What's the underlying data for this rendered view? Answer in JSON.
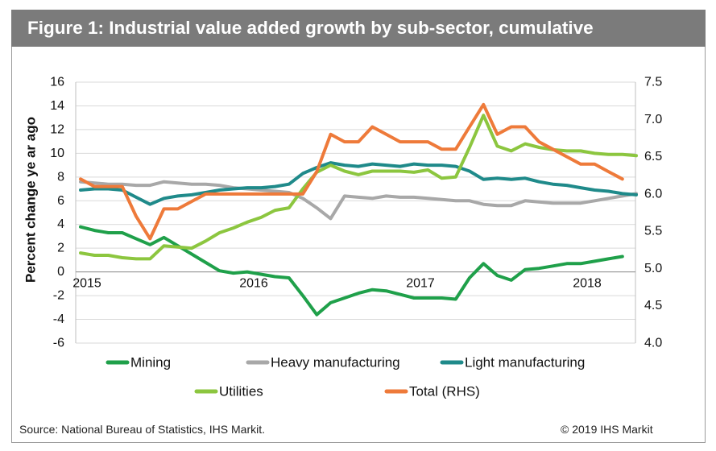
{
  "title": "Figure 1: Industrial value added growth by sub-sector, cumulative",
  "source": "Source: National Bureau of Statistics, IHS Markit.",
  "copyright": "© 2019 IHS Markit",
  "chart_data": {
    "type": "line",
    "ylabel": "Percent change ye ar ago",
    "ylim": [
      -6,
      16
    ],
    "y_ticks": [
      "16",
      "14",
      "12",
      "10",
      "8",
      "6",
      "4",
      "2",
      "0",
      "-2",
      "-4",
      "-6"
    ],
    "y2lim": [
      4.0,
      7.5
    ],
    "y2_ticks": [
      "7.5",
      "7.0",
      "6.5",
      "6.0",
      "5.5",
      "5.0",
      "4.5",
      "4.0"
    ],
    "x_tick_labels": [
      "2015",
      "2016",
      "2017",
      "2018"
    ],
    "x": [
      "2015-01",
      "2015-02",
      "2015-03",
      "2015-04",
      "2015-05",
      "2015-06",
      "2015-07",
      "2015-08",
      "2015-09",
      "2015-10",
      "2015-11",
      "2015-12",
      "2016-01",
      "2016-02",
      "2016-03",
      "2016-04",
      "2016-05",
      "2016-06",
      "2016-07",
      "2016-08",
      "2016-09",
      "2016-10",
      "2016-11",
      "2016-12",
      "2017-01",
      "2017-02",
      "2017-03",
      "2017-04",
      "2017-05",
      "2017-06",
      "2017-07",
      "2017-08",
      "2017-09",
      "2017-10",
      "2017-11",
      "2017-12",
      "2018-01",
      "2018-02",
      "2018-03",
      "2018-04",
      "2018-05"
    ],
    "legend_position": "bottom",
    "series": [
      {
        "name": "Mining",
        "color": "#1fa04a",
        "axis": "left",
        "values": [
          3.8,
          3.5,
          3.3,
          3.3,
          2.8,
          2.3,
          2.9,
          2.2,
          1.5,
          0.8,
          0.1,
          -0.1,
          0.0,
          -0.2,
          -0.4,
          -0.5,
          -2.0,
          -3.6,
          -2.6,
          -2.2,
          -1.8,
          -1.5,
          -1.6,
          -1.9,
          -2.2,
          -2.2,
          -2.2,
          -2.3,
          -0.5,
          0.7,
          -0.3,
          -0.7,
          0.2,
          0.3,
          0.5,
          0.7,
          0.7,
          0.9,
          1.1,
          1.3,
          null
        ]
      },
      {
        "name": "Heavy manufacturing",
        "color": "#a8a8a8",
        "axis": "left",
        "values": [
          7.6,
          7.5,
          7.4,
          7.4,
          7.3,
          7.3,
          7.6,
          7.5,
          7.4,
          7.4,
          7.3,
          7.1,
          7.0,
          6.9,
          6.8,
          6.7,
          6.2,
          5.4,
          4.5,
          6.4,
          6.3,
          6.2,
          6.4,
          6.3,
          6.3,
          6.2,
          6.1,
          6.0,
          6.0,
          5.7,
          5.6,
          5.6,
          6.0,
          5.9,
          5.8,
          5.8,
          5.8,
          6.0,
          6.2,
          6.4,
          6.6
        ]
      },
      {
        "name": "Light manufacturing",
        "color": "#1f8a8a",
        "axis": "left",
        "values": [
          6.9,
          7.0,
          7.0,
          6.9,
          6.3,
          5.7,
          6.2,
          6.4,
          6.5,
          6.7,
          6.9,
          7.0,
          7.1,
          7.1,
          7.2,
          7.4,
          8.3,
          8.8,
          9.2,
          9.0,
          8.9,
          9.1,
          9.0,
          8.9,
          9.1,
          9.0,
          9.0,
          8.9,
          8.5,
          7.8,
          7.9,
          7.8,
          7.9,
          7.6,
          7.4,
          7.3,
          7.1,
          6.9,
          6.8,
          6.6,
          6.5
        ]
      },
      {
        "name": "Utilities",
        "color": "#8cc63f",
        "axis": "left",
        "values": [
          1.6,
          1.4,
          1.4,
          1.2,
          1.1,
          1.1,
          2.2,
          2.1,
          2.0,
          2.6,
          3.3,
          3.7,
          4.2,
          4.6,
          5.2,
          5.4,
          7.0,
          8.4,
          9.0,
          8.5,
          8.2,
          8.5,
          8.5,
          8.5,
          8.4,
          8.6,
          7.9,
          8.0,
          10.5,
          13.2,
          10.6,
          10.2,
          10.8,
          10.5,
          10.3,
          10.2,
          10.2,
          10.0,
          9.9,
          9.9,
          9.8
        ]
      },
      {
        "name": "Total (RHS)",
        "color": "#ee7a3a",
        "axis": "right",
        "values": [
          6.2,
          6.1,
          6.1,
          6.1,
          5.7,
          5.4,
          5.8,
          5.8,
          5.9,
          6.0,
          6.0,
          6.0,
          6.0,
          6.0,
          6.0,
          6.0,
          6.0,
          6.3,
          6.8,
          6.7,
          6.7,
          6.9,
          6.8,
          6.7,
          6.7,
          6.7,
          6.6,
          6.6,
          6.9,
          7.2,
          6.8,
          6.9,
          6.9,
          6.7,
          6.6,
          6.5,
          6.4,
          6.4,
          6.3,
          6.2,
          null
        ]
      }
    ]
  }
}
